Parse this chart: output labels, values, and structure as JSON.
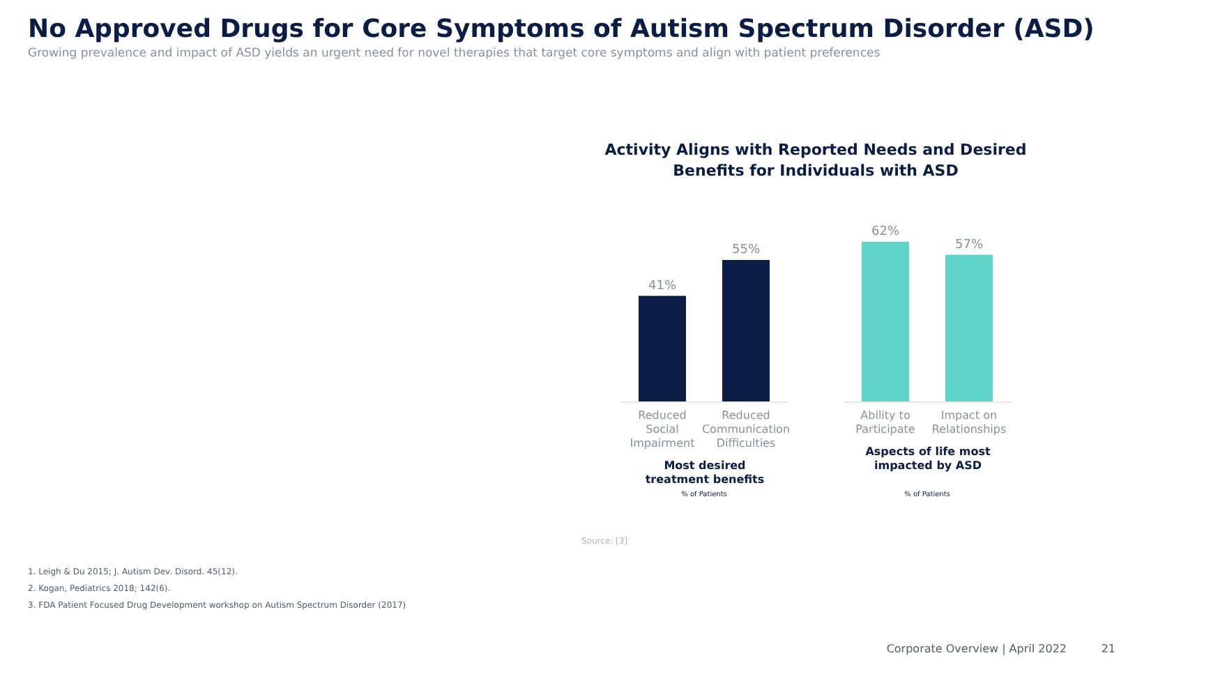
{
  "chart_data": [
    {
      "type": "bar",
      "title": "No Approved Drugs for Core Symptoms of Autism Spectrum Disorder (ASD)",
      "subtitle": "Growing prevalence and impact of ASD yields an urgent need for novel therapies that target core symptoms and align with patient preferences",
      "categories": [
        "Reduced Social Impairment",
        "Reduced Communication Difficulties"
      ],
      "values": [
        41,
        55
      ],
      "value_labels": [
        "41%",
        "55%"
      ],
      "color": "#0b1d45",
      "xlabel": "Most desired treatment benefits",
      "annotations": [
        "Activity Aligns with Reported Needs and Desired Benefits for Individuals with ASD",
        "% of Patients",
        "Source: [3]",
        "1. Leigh & Du 2015; J. Autism Dev. Disord. 45(12).",
        "2. Kogan, Pediatrics 2018; 142(6).",
        "3. FDA Patient Focused Drug Development workshop on Autism Spectrum Disorder (2017)"
      ]
    },
    {
      "type": "bar",
      "categories": [
        "Ability to Participate",
        "Impact on Relationships"
      ],
      "values": [
        62,
        57
      ],
      "value_labels": [
        "62%",
        "57%"
      ],
      "color": "#5fd3c8",
      "xlabel": "Aspects of life most impacted by ASD",
      "annotations": [
        "% of Patients",
        "Corporate Overview | April 2022",
        "21"
      ]
    }
  ]
}
